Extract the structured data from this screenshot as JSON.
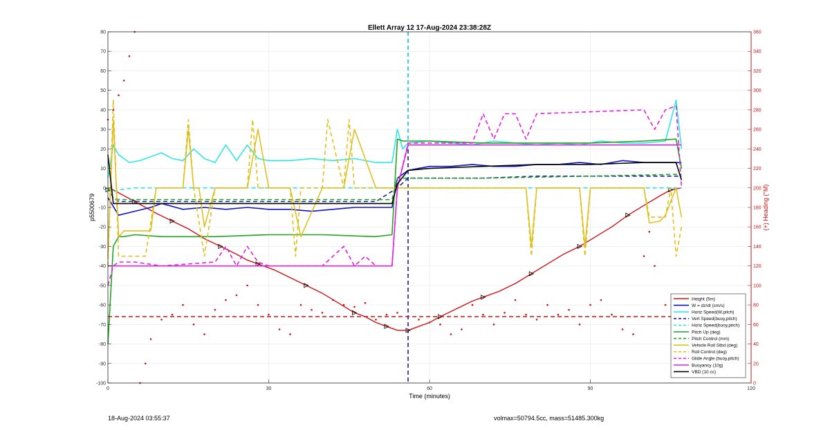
{
  "chart_data": {
    "type": "line",
    "title": "Ellett Array 12 17-Aug-2024 23:38:28Z",
    "xlabel": "Time (minutes)",
    "ylabel": "p5500679",
    "y2label": "(+) Heading (°M)",
    "xlim": [
      0,
      120
    ],
    "ylim": [
      -100,
      80
    ],
    "y2lim": [
      0,
      360
    ],
    "xticks": [
      "0",
      "30",
      "60",
      "90",
      "120"
    ],
    "yticks": [
      "80",
      "70",
      "60",
      "50",
      "40",
      "30",
      "20",
      "10",
      "0",
      "-10",
      "-20",
      "-30",
      "-40",
      "-50",
      "-60",
      "-70",
      "-80",
      "-90",
      "-100"
    ],
    "y2ticks": [
      "360",
      "340",
      "320",
      "300",
      "280",
      "260",
      "240",
      "220",
      "200",
      "180",
      "160",
      "140",
      "120",
      "100",
      "80",
      "60",
      "40",
      "20",
      "0"
    ],
    "grid": true,
    "legend_position": "bottom-right",
    "vlines": [
      {
        "x": 56,
        "style": "dashed",
        "color": "#1a1aa6"
      },
      {
        "x": 56,
        "style": "dashed",
        "color": "#2ee6e6",
        "y_from": 20,
        "y_to": 80
      }
    ],
    "series": [
      {
        "name": "Height (5m)",
        "color": "#cc1111",
        "style": "solid-markers",
        "x": [
          0,
          1,
          3,
          5,
          7,
          9,
          12,
          15,
          18,
          21,
          24,
          26,
          28,
          31,
          34,
          37,
          40,
          43,
          46,
          48,
          50,
          52,
          54,
          55,
          56,
          58,
          60,
          62,
          65,
          68,
          70,
          73,
          76,
          79,
          82,
          85,
          88,
          91,
          94,
          97,
          100,
          103,
          105,
          107
        ],
        "values": [
          -1,
          -1,
          -4,
          -7,
          -10,
          -13,
          -17,
          -21,
          -26,
          -30,
          -34,
          -37,
          -39,
          -42,
          -46,
          -50,
          -54,
          -59,
          -64,
          -66,
          -69,
          -71,
          -73,
          -73,
          -73,
          -71,
          -69,
          -66,
          -62,
          -58,
          -56,
          -53,
          -49,
          -44,
          -39,
          -34,
          -30,
          -25,
          -20,
          -14,
          -9,
          -4,
          -1,
          0
        ]
      },
      {
        "name": "W = dz/dt (cm/s)",
        "color": "#1010c8",
        "style": "solid",
        "x": [
          0,
          2,
          5,
          8,
          10,
          14,
          18,
          22,
          26,
          30,
          34,
          38,
          42,
          46,
          50,
          53,
          54,
          56,
          60,
          64,
          68,
          72,
          76,
          80,
          84,
          88,
          92,
          96,
          100,
          104,
          107
        ],
        "values": [
          -5,
          -14,
          -12,
          -10,
          -8,
          -11,
          -10,
          -11,
          -10,
          -11,
          -11,
          -12,
          -11,
          -10,
          -10,
          -10,
          5,
          9,
          11,
          11,
          12,
          11,
          11,
          12,
          12,
          13,
          12,
          14,
          13,
          13,
          13
        ]
      },
      {
        "name": "Horiz Speed(W,pitch)",
        "color": "#2ee6e6",
        "style": "solid",
        "x": [
          0,
          1,
          2,
          4,
          6,
          8,
          10,
          12,
          14,
          16,
          18,
          20,
          22,
          24,
          26,
          28,
          30,
          34,
          38,
          42,
          46,
          50,
          53,
          54,
          55,
          56,
          60,
          64,
          68,
          72,
          76,
          80,
          84,
          88,
          92,
          96,
          100,
          104,
          106,
          107
        ],
        "values": [
          5,
          22,
          17,
          13,
          14,
          16,
          18,
          15,
          14,
          20,
          15,
          13,
          22,
          14,
          22,
          15,
          14,
          14,
          15,
          14,
          15,
          13,
          13,
          30,
          20,
          23,
          24,
          23,
          22,
          24,
          23,
          22,
          23,
          22,
          24,
          23,
          23,
          24,
          45,
          20
        ]
      },
      {
        "name": "Vert Speed(buoy,pitch)",
        "color": "#1a1aa6",
        "style": "dashed",
        "x": [
          0,
          1,
          2,
          5,
          10,
          20,
          30,
          40,
          50,
          54,
          56,
          60,
          70,
          80,
          90,
          100,
          107
        ],
        "values": [
          0,
          -5,
          -7,
          -7,
          -7,
          -7,
          -7,
          -7,
          -7,
          0,
          5,
          5,
          5,
          6,
          6,
          6,
          6
        ]
      },
      {
        "name": "Horiz Speed(buoy,pitch)",
        "color": "#2ee6e6",
        "style": "dashed",
        "x": [
          0,
          1,
          2,
          5,
          20,
          40,
          53,
          54,
          56,
          70,
          90,
          107
        ],
        "values": [
          0,
          -2,
          -1,
          0,
          0,
          0,
          0,
          0,
          0,
          0,
          0,
          0
        ]
      },
      {
        "name": "Pitch Up (deg)",
        "color": "#1fa31f",
        "style": "solid",
        "x": [
          0,
          1,
          2,
          3,
          5,
          10,
          20,
          30,
          40,
          50,
          53,
          54,
          55,
          60,
          70,
          80,
          90,
          100,
          106,
          107
        ],
        "values": [
          -80,
          -30,
          -25,
          -25,
          -24,
          -25,
          -25,
          -24,
          -24,
          -25,
          -24,
          25,
          24,
          24,
          23,
          23,
          23,
          24,
          25,
          10
        ]
      },
      {
        "name": "Pitch Control (mm)",
        "color": "#1fa31f",
        "style": "dashed",
        "x": [
          0,
          1,
          2,
          10,
          30,
          50,
          53,
          54,
          56,
          70,
          90,
          107
        ],
        "values": [
          0,
          -5,
          -6,
          -6,
          -6,
          -6,
          -6,
          5,
          5,
          5,
          6,
          7
        ]
      },
      {
        "name": "Vehicle Roll Stbd (deg)",
        "color": "#e0c020",
        "style": "solid",
        "x": [
          0,
          1,
          2,
          3,
          4,
          6,
          8,
          9,
          10,
          12,
          14,
          15,
          16,
          17,
          18,
          20,
          24,
          26,
          28,
          30,
          34,
          36,
          40,
          44,
          46,
          50,
          53,
          54,
          56,
          60,
          68,
          76,
          78,
          79,
          80,
          86,
          88,
          89,
          90,
          94,
          96,
          100,
          101,
          103,
          104,
          106,
          107
        ],
        "values": [
          -35,
          35,
          -25,
          -22,
          -22,
          -22,
          -22,
          0,
          0,
          0,
          0,
          30,
          0,
          0,
          -20,
          0,
          0,
          0,
          30,
          0,
          0,
          -25,
          0,
          0,
          30,
          0,
          0,
          0,
          0,
          0,
          0,
          0,
          0,
          -30,
          0,
          0,
          0,
          -30,
          0,
          0,
          0,
          0,
          -18,
          -17,
          -14,
          0,
          -15
        ]
      },
      {
        "name": "Roll Control (deg)",
        "color": "#e0c020",
        "style": "dashed",
        "x": [
          0,
          1,
          2,
          4,
          7,
          9,
          14,
          15,
          16,
          18,
          20,
          26,
          27,
          28,
          34,
          35,
          36,
          40,
          41,
          44,
          45,
          46,
          50,
          56,
          78,
          79,
          80,
          88,
          89,
          90,
          94,
          100,
          101,
          104,
          105,
          106,
          107
        ],
        "values": [
          -40,
          45,
          -35,
          -35,
          -35,
          0,
          0,
          35,
          0,
          -35,
          0,
          0,
          35,
          0,
          0,
          -35,
          0,
          0,
          35,
          0,
          35,
          0,
          0,
          0,
          0,
          -35,
          0,
          0,
          -35,
          0,
          0,
          0,
          -15,
          -15,
          0,
          -35,
          -20
        ]
      },
      {
        "name": "Glide Angle (buoy,pitch)",
        "color": "#e020e0",
        "style": "dashed",
        "x": [
          0,
          1,
          2,
          5,
          10,
          20,
          22,
          24,
          26,
          28,
          30,
          40,
          44,
          46,
          48,
          50,
          53,
          54,
          56,
          60,
          68,
          70,
          72,
          74,
          76,
          78,
          80,
          90,
          100,
          102,
          104,
          106,
          107
        ],
        "values": [
          -50,
          -40,
          -38,
          -38,
          -40,
          -38,
          -30,
          -40,
          -30,
          -38,
          -40,
          -40,
          -30,
          -40,
          -35,
          -40,
          -40,
          0,
          23,
          23,
          23,
          38,
          25,
          38,
          38,
          25,
          38,
          39,
          40,
          30,
          40,
          42,
          0
        ]
      },
      {
        "name": "Buoyancy (10g)",
        "color": "#e020e0",
        "style": "solid",
        "x": [
          0,
          2,
          10,
          30,
          53,
          54,
          56,
          60,
          70,
          90,
          107
        ],
        "values": [
          -40,
          -40,
          -40,
          -40,
          -40,
          0,
          22,
          22,
          22,
          22,
          22
        ]
      },
      {
        "name": "VBD (10 cc)",
        "color": "#000000",
        "style": "solid",
        "x": [
          0,
          1,
          2,
          5,
          10,
          20,
          30,
          40,
          50,
          53,
          54,
          56,
          60,
          70,
          80,
          90,
          100,
          106,
          107
        ],
        "values": [
          17,
          -8,
          -8,
          -8,
          -8,
          -8,
          -8,
          -8,
          -8,
          -8,
          2,
          9,
          10,
          11,
          12,
          12,
          13,
          13,
          4
        ]
      },
      {
        "name": "Heading",
        "color": "#cc1111",
        "style": "dots",
        "axis": "right",
        "x": [
          0,
          1,
          2,
          3,
          4,
          5,
          6,
          7,
          8,
          10,
          12,
          14,
          16,
          18,
          20,
          22,
          24,
          26,
          28,
          30,
          32,
          34,
          36,
          38,
          40,
          42,
          44,
          46,
          48,
          50,
          52,
          54,
          56,
          58,
          60,
          62,
          64,
          66,
          68,
          70,
          72,
          74,
          76,
          78,
          80,
          82,
          84,
          86,
          88,
          90,
          92,
          94,
          96,
          98,
          100,
          101,
          102,
          104,
          106,
          107
        ],
        "values": [
          270,
          280,
          295,
          310,
          335,
          360,
          0,
          20,
          45,
          65,
          70,
          80,
          60,
          50,
          75,
          85,
          90,
          100,
          80,
          70,
          55,
          50,
          80,
          75,
          72,
          85,
          80,
          78,
          82,
          65,
          70,
          72,
          68,
          65,
          62,
          60,
          50,
          55,
          80,
          70,
          60,
          72,
          85,
          70,
          65,
          80,
          70,
          75,
          60,
          80,
          85,
          70,
          55,
          50,
          130,
          155,
          120,
          80,
          65,
          70
        ]
      },
      {
        "name": "Heading ref",
        "color": "#cc1111",
        "style": "dashed",
        "axis": "right",
        "x": [
          0,
          107
        ],
        "values": [
          68,
          68
        ]
      }
    ],
    "legend": [
      "Height (5m)",
      "W = dz/dt (cm/s)",
      "Horiz Speed(W,pitch)",
      "Vert Speed(buoy,pitch)",
      "Horiz Speed(buoy,pitch)",
      "Pitch Up (deg)",
      "Pitch Control (mm)",
      "Vehicle Roll Stbd (deg)",
      "Roll Control (deg)",
      "Glide Angle (buoy,pitch)",
      "Buoyancy (10g)",
      "VBD (10 cc)"
    ]
  },
  "footer": {
    "timestamp": "18-Aug-2024 03:55:37",
    "stats": "volmax=50794.5cc, mass=51485.300kg"
  }
}
